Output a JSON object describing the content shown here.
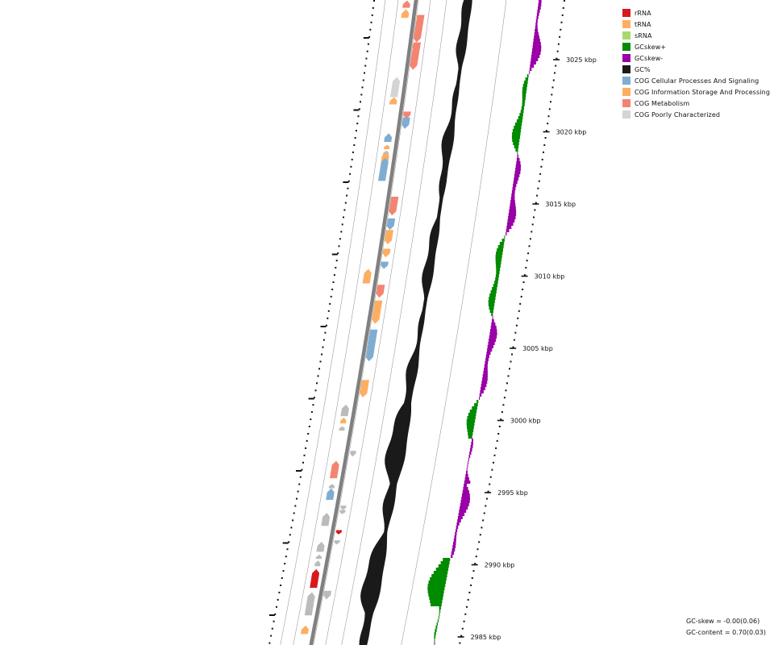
{
  "legend": {
    "items": [
      {
        "label": "rRNA",
        "color": "#d7191c"
      },
      {
        "label": "tRNA",
        "color": "#fdae61"
      },
      {
        "label": "sRNA",
        "color": "#a6d96a"
      },
      {
        "label": "GCskew+",
        "color": "#008b00"
      },
      {
        "label": "GCskew-",
        "color": "#9900a6"
      },
      {
        "label": "GC%",
        "color": "#1a1a1a"
      },
      {
        "label": "COG Cellular Processes And Signaling",
        "color": "#7fadd2"
      },
      {
        "label": "COG Information Storage And Processing",
        "color": "#fdae61"
      },
      {
        "label": "COG Metabolism",
        "color": "#f4846f"
      },
      {
        "label": "COG Poorly Characterized",
        "color": "#d4d4d4"
      }
    ]
  },
  "ticks": [
    {
      "label": "3025 kbp",
      "kbp": 3025
    },
    {
      "label": "3020 kbp",
      "kbp": 3020
    },
    {
      "label": "3015 kbp",
      "kbp": 3015
    },
    {
      "label": "3010 kbp",
      "kbp": 3010
    },
    {
      "label": "3005 kbp",
      "kbp": 3005
    },
    {
      "label": "3000 kbp",
      "kbp": 3000
    },
    {
      "label": "2995 kbp",
      "kbp": 2995
    },
    {
      "label": "2990 kbp",
      "kbp": 2990
    },
    {
      "label": "2985 kbp",
      "kbp": 2985
    }
  ],
  "stats": {
    "gc_skew": "GC-skew = -0.00(0.06)",
    "gc_content": "GC-content = 0.70(0.03)"
  },
  "tracks": {
    "features": [
      {
        "kbp": 3028.6,
        "len": 0.5,
        "strand": "+",
        "color": "#f4846f"
      },
      {
        "kbp": 3027.9,
        "len": 0.6,
        "strand": "+",
        "color": "#fdae61"
      },
      {
        "kbp": 3026.2,
        "len": 1.9,
        "strand": "-",
        "color": "#f4846f"
      },
      {
        "kbp": 3025.6,
        "len": 0.5,
        "strand": "-",
        "color": "#f4846f"
      },
      {
        "kbp": 3024.3,
        "len": 1.9,
        "strand": "-",
        "color": "#f4846f"
      },
      {
        "kbp": 3022.4,
        "len": 1.4,
        "strand": "+",
        "color": "#d4d4d4"
      },
      {
        "kbp": 3021.9,
        "len": 0.5,
        "strand": "+",
        "color": "#fdae61"
      },
      {
        "kbp": 3020.9,
        "len": 0.5,
        "strand": "-",
        "color": "#f4846f"
      },
      {
        "kbp": 3020.2,
        "len": 0.8,
        "strand": "-",
        "color": "#7fadd2"
      },
      {
        "kbp": 3019.3,
        "len": 0.6,
        "strand": "+",
        "color": "#7fadd2"
      },
      {
        "kbp": 3018.8,
        "len": 0.3,
        "strand": "+",
        "color": "#fdae61"
      },
      {
        "kbp": 3018.4,
        "len": 0.3,
        "strand": "+",
        "color": "#bbbbbb"
      },
      {
        "kbp": 3017.9,
        "len": 0.7,
        "strand": "+",
        "color": "#fdae61"
      },
      {
        "kbp": 3016.6,
        "len": 1.6,
        "strand": "+",
        "color": "#7fadd2"
      },
      {
        "kbp": 3014.2,
        "len": 1.3,
        "strand": "-",
        "color": "#f4846f"
      },
      {
        "kbp": 3013.2,
        "len": 0.8,
        "strand": "-",
        "color": "#7fadd2"
      },
      {
        "kbp": 3012.2,
        "len": 1.0,
        "strand": "-",
        "color": "#fdae61"
      },
      {
        "kbp": 3011.3,
        "len": 0.6,
        "strand": "-",
        "color": "#fdae61"
      },
      {
        "kbp": 3010.5,
        "len": 0.5,
        "strand": "-",
        "color": "#7fadd2"
      },
      {
        "kbp": 3009.5,
        "len": 1.0,
        "strand": "+",
        "color": "#fdae61"
      },
      {
        "kbp": 3008.5,
        "len": 0.9,
        "strand": "-",
        "color": "#f4846f"
      },
      {
        "kbp": 3007.8,
        "len": 0.5,
        "strand": "-",
        "color": "#f4846f"
      },
      {
        "kbp": 3006.7,
        "len": 1.6,
        "strand": "-",
        "color": "#fdae61"
      },
      {
        "kbp": 3004.1,
        "len": 2.2,
        "strand": "-",
        "color": "#7fadd2"
      },
      {
        "kbp": 3002.5,
        "len": 0.3,
        "strand": "-",
        "color": "#fdae61"
      },
      {
        "kbp": 3001.6,
        "len": 1.2,
        "strand": "-",
        "color": "#fdae61"
      },
      {
        "kbp": 3000.3,
        "len": 0.8,
        "strand": "+",
        "color": "#bbbbbb"
      },
      {
        "kbp": 2999.8,
        "len": 0.4,
        "strand": "+",
        "color": "#fdae61"
      },
      {
        "kbp": 2999.3,
        "len": 0.3,
        "strand": "+",
        "color": "#bbbbbb"
      },
      {
        "kbp": 2997.5,
        "len": 0.4,
        "strand": "-",
        "color": "#bbbbbb"
      },
      {
        "kbp": 2996.0,
        "len": 1.2,
        "strand": "+",
        "color": "#f4846f"
      },
      {
        "kbp": 2995.3,
        "len": 0.3,
        "strand": "+",
        "color": "#bbbbbb"
      },
      {
        "kbp": 2994.5,
        "len": 0.8,
        "strand": "+",
        "color": "#7fadd2"
      },
      {
        "kbp": 2993.8,
        "len": 0.3,
        "strand": "-",
        "color": "#bbbbbb"
      },
      {
        "kbp": 2993.5,
        "len": 0.3,
        "strand": "-",
        "color": "#bbbbbb"
      },
      {
        "kbp": 2992.7,
        "len": 0.9,
        "strand": "+",
        "color": "#bbbbbb"
      },
      {
        "kbp": 2992.1,
        "len": 0.3,
        "strand": "-",
        "color": "#d7191c"
      },
      {
        "kbp": 2991.4,
        "len": 0.3,
        "strand": "-",
        "color": "#bbbbbb"
      },
      {
        "kbp": 2990.9,
        "len": 0.7,
        "strand": "+",
        "color": "#bbbbbb"
      },
      {
        "kbp": 2990.4,
        "len": 0.3,
        "strand": "+",
        "color": "#bbbbbb"
      },
      {
        "kbp": 2989.9,
        "len": 0.4,
        "strand": "+",
        "color": "#bbbbbb"
      },
      {
        "kbp": 2988.4,
        "len": 1.3,
        "strand": "+",
        "color": "#d7191c"
      },
      {
        "kbp": 2987.6,
        "len": 0.6,
        "strand": "-",
        "color": "#bbbbbb"
      },
      {
        "kbp": 2986.5,
        "len": 1.6,
        "strand": "+",
        "color": "#bbbbbb"
      },
      {
        "kbp": 2985.2,
        "len": 0.6,
        "strand": "+",
        "color": "#fdae61"
      }
    ]
  }
}
